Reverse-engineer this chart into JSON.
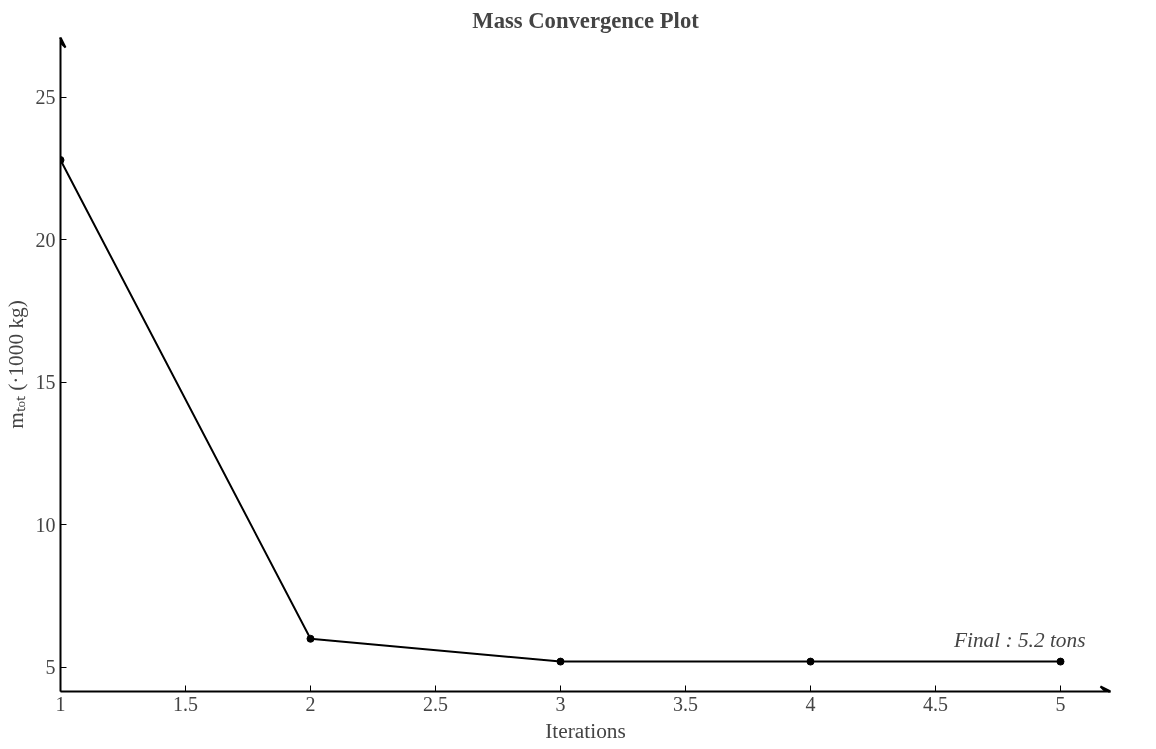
{
  "chart_data": {
    "type": "line",
    "title": "Mass Convergence Plot",
    "xlabel": "Iterations",
    "ylabel": "mₜₒₜ (·1000 kg)",
    "x": [
      1,
      2,
      3,
      4,
      5
    ],
    "series": [
      {
        "color": "#000000",
        "values": [
          22.8,
          6.0,
          5.2,
          5.2,
          5.2
        ]
      }
    ],
    "xlim": [
      1,
      5.2
    ],
    "xticks": [
      1,
      1.5,
      2,
      2.5,
      3,
      3.5,
      4,
      4.5,
      5
    ],
    "ylim": [
      4.15,
      27.1
    ],
    "yticks": [
      5,
      10,
      15,
      20,
      25
    ],
    "grid": false,
    "marker": "circle",
    "line_style": "solid",
    "annotations": [
      {
        "text": "Final : 5.2 tons",
        "x": 5,
        "y": 5.2
      }
    ]
  }
}
